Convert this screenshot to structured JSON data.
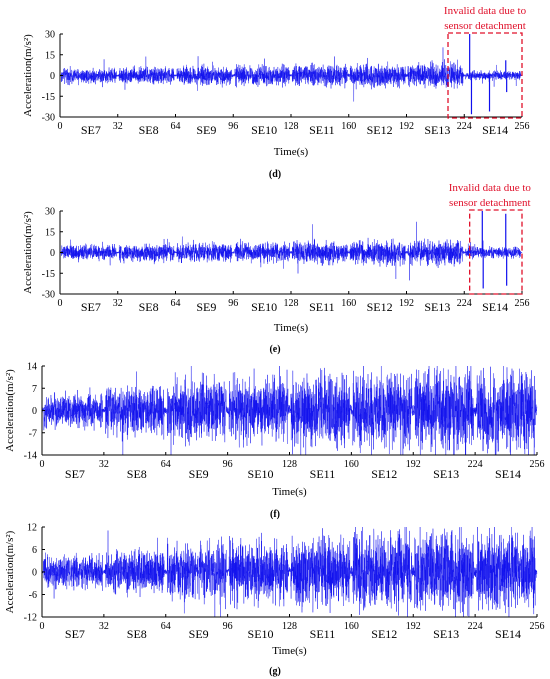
{
  "colors": {
    "signal": "#1010ee",
    "annotation": "#e0102a"
  },
  "chart_data": [
    {
      "type": "line",
      "panel": "(d)",
      "xlabel": "Time(s)",
      "ylabel": "Acceleration(m/s²)",
      "xlim": [
        0,
        256
      ],
      "ylim": [
        -30,
        30
      ],
      "xticks": [
        0,
        32,
        64,
        96,
        128,
        160,
        192,
        224,
        256
      ],
      "yticks": [
        -30,
        -15,
        0,
        15,
        30
      ],
      "segments": [
        "SE7",
        "SE8",
        "SE9",
        "SE10",
        "SE11",
        "SE12",
        "SE13",
        "SE14"
      ],
      "amplitude": [
        2.5,
        2.8,
        3.0,
        3.3,
        3.6,
        3.8,
        4.2,
        1.5
      ],
      "spikes": [
        {
          "t": 227,
          "v": 30
        },
        {
          "t": 228,
          "v": -28
        },
        {
          "t": 238,
          "v": -26
        },
        {
          "t": 247,
          "v": 11
        },
        {
          "t": 247.5,
          "v": -12
        }
      ],
      "annotation": {
        "text": "Invalid data due to sensor detachment",
        "x_range": [
          215,
          256
        ]
      }
    },
    {
      "type": "line",
      "panel": "(e)",
      "xlabel": "Time(s)",
      "ylabel": "Acceleration(m/s²)",
      "xlim": [
        0,
        256
      ],
      "ylim": [
        -30,
        30
      ],
      "xticks": [
        0,
        32,
        64,
        96,
        128,
        160,
        192,
        224,
        256
      ],
      "yticks": [
        -30,
        -15,
        0,
        15,
        30
      ],
      "segments": [
        "SE7",
        "SE8",
        "SE9",
        "SE10",
        "SE11",
        "SE12",
        "SE13",
        "SE14"
      ],
      "amplitude": [
        2.5,
        2.8,
        3.0,
        3.3,
        3.6,
        3.8,
        4.2,
        1.8
      ],
      "spikes": [
        {
          "t": 234,
          "v": 30
        },
        {
          "t": 234.5,
          "v": -26
        },
        {
          "t": 247,
          "v": 28
        },
        {
          "t": 247.5,
          "v": -24
        }
      ],
      "annotation": {
        "text": "Invalid data due to sensor detachment",
        "x_range": [
          227,
          256
        ]
      }
    },
    {
      "type": "line",
      "panel": "(f)",
      "xlabel": "Time(s)",
      "ylabel": "Acceleration(m/s²)",
      "xlim": [
        0,
        256
      ],
      "ylim": [
        -14,
        14
      ],
      "xticks": [
        0,
        32,
        64,
        96,
        128,
        160,
        192,
        224,
        256
      ],
      "yticks": [
        -14,
        -7,
        0,
        7,
        14
      ],
      "segments": [
        "SE7",
        "SE8",
        "SE9",
        "SE10",
        "SE11",
        "SE12",
        "SE13",
        "SE14"
      ],
      "amplitude": [
        2.5,
        3.5,
        4.5,
        4.8,
        5.5,
        6.0,
        6.2,
        6.0
      ],
      "spikes": [],
      "annotation": null
    },
    {
      "type": "line",
      "panel": "(g)",
      "xlabel": "Time(s)",
      "ylabel": "Acceleration(m/s²)",
      "xlim": [
        0,
        256
      ],
      "ylim": [
        -12,
        12
      ],
      "xticks": [
        0,
        32,
        64,
        96,
        128,
        160,
        192,
        224,
        256
      ],
      "yticks": [
        -12,
        -6,
        0,
        6,
        12
      ],
      "segments": [
        "SE7",
        "SE8",
        "SE9",
        "SE10",
        "SE11",
        "SE12",
        "SE13",
        "SE14"
      ],
      "amplitude": [
        2.0,
        2.6,
        3.5,
        3.8,
        4.2,
        4.8,
        5.0,
        5.0
      ],
      "spikes": [],
      "annotation": null
    }
  ]
}
